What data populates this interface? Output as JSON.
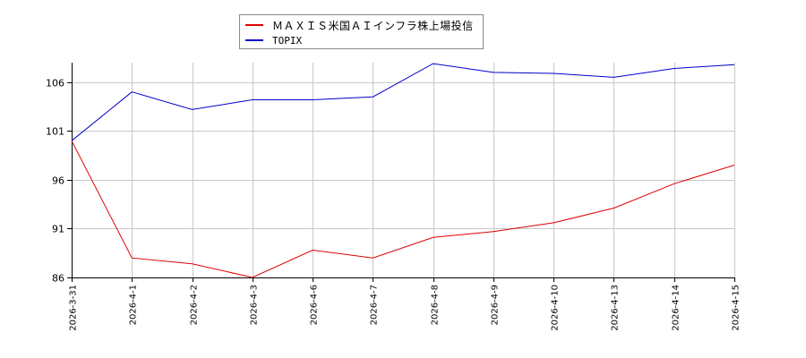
{
  "chart_data": {
    "type": "line",
    "title": "",
    "xlabel": "",
    "ylabel": "",
    "categories": [
      "2026-3-31",
      "2026-4-1",
      "2026-4-2",
      "2026-4-3",
      "2026-4-6",
      "2026-4-7",
      "2026-4-8",
      "2026-4-9",
      "2026-4-10",
      "2026-4-13",
      "2026-4-14",
      "2026-4-15"
    ],
    "series": [
      {
        "name": "ＭＡＸＩＳ米国ＡＩインフラ株上場投信",
        "color": "#dd0000",
        "values": [
          100.0,
          88.0,
          87.4,
          86.0,
          88.8,
          88.0,
          90.1,
          90.7,
          91.6,
          93.1,
          95.6,
          97.5
        ]
      },
      {
        "name": "TOPIX",
        "color": "#0000cc",
        "values": [
          100.0,
          105.0,
          103.2,
          104.2,
          104.2,
          104.5,
          107.9,
          107.0,
          106.9,
          106.5,
          107.4,
          107.8
        ]
      }
    ],
    "yticks": [
      86,
      91,
      96,
      101,
      106
    ],
    "ylim": [
      86,
      108
    ],
    "grid": true,
    "legend_position": "top"
  },
  "legend": {
    "items": [
      {
        "label": "ＭＡＸＩＳ米国ＡＩインフラ株上場投信",
        "color": "#dd0000"
      },
      {
        "label": "TOPIX",
        "color": "#0000cc"
      }
    ]
  }
}
